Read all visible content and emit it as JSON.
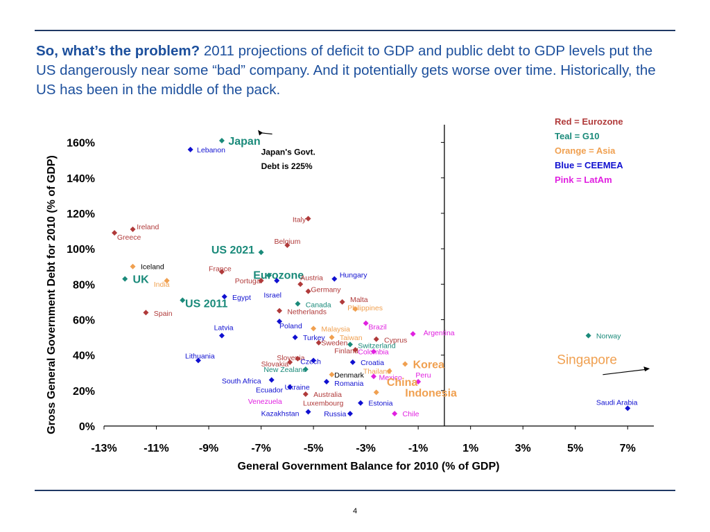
{
  "headline": {
    "lead": "So, what’s the problem?",
    "body": " 2011 projections of deficit to GDP and public debt to GDP levels put the US dangerously near some “bad” company. And it potentially gets worse over time. Historically, the US has been in the middle of the pack."
  },
  "page_number": "4",
  "colors": {
    "eurozone": "#b03a3a",
    "g10": "#1a8a7a",
    "asia": "#f0a050",
    "ceemea": "#1010d0",
    "latam": "#e020e0",
    "navy": "#1f3864",
    "black": "#000000"
  },
  "chart_data": {
    "type": "scatter",
    "xlabel": "General Government Balance for 2010 (% of GDP)",
    "ylabel": "Gross General Government Debt  for 2010 (% of GDP)",
    "xlim": [
      -13,
      8
    ],
    "ylim": [
      0,
      170
    ],
    "xticks": [
      -13,
      -11,
      -9,
      -7,
      -5,
      -3,
      -1,
      1,
      3,
      5,
      7
    ],
    "xtick_labels": [
      "-13%",
      "-11%",
      "-9%",
      "-7%",
      "-5%",
      "-3%",
      "-1%",
      "1%",
      "3%",
      "5%",
      "7%"
    ],
    "yticks": [
      0,
      20,
      40,
      60,
      80,
      100,
      120,
      140,
      160
    ],
    "ytick_labels": [
      "0%",
      "20%",
      "40%",
      "60%",
      "80%",
      "100%",
      "120%",
      "140%",
      "160%"
    ],
    "y_axis_at_x": 0,
    "legend": [
      {
        "text": "Red = Eurozone",
        "group": "eurozone"
      },
      {
        "text": "Teal = G10",
        "group": "g10"
      },
      {
        "text": "Orange = Asia",
        "group": "asia"
      },
      {
        "text": "Blue = CEEMEA",
        "group": "ceemea"
      },
      {
        "text": "Pink = LatAm",
        "group": "latam"
      }
    ],
    "annotations": [
      {
        "text": "Japan's Govt.",
        "x": -7.0,
        "y": 153,
        "arrow_to": [
          -7.2,
          167
        ]
      },
      {
        "text": "Debt is 225%",
        "x": -7.0,
        "y": 145
      },
      {
        "text": "Singapore",
        "x": 4.3,
        "y": 37,
        "arrow_to": [
          7.9,
          32
        ]
      }
    ],
    "points": [
      {
        "label": "Japan",
        "x": -8.5,
        "y": 161,
        "group": "g10",
        "big": true,
        "lx": 0.25,
        "ly": 0
      },
      {
        "label": "Lebanon",
        "x": -9.7,
        "y": 156,
        "group": "ceemea",
        "lx": 0.25,
        "ly": 0
      },
      {
        "label": "Ireland",
        "x": -11.9,
        "y": 111,
        "group": "eurozone",
        "lx": 0.15,
        "ly": 4
      },
      {
        "label": "Greece",
        "x": -12.6,
        "y": 109,
        "group": "eurozone",
        "lx": 0.1,
        "ly": -6
      },
      {
        "label": "Italy",
        "x": -5.2,
        "y": 117,
        "group": "eurozone",
        "lx": -0.6,
        "ly": -1
      },
      {
        "label": "Belgium",
        "x": -6.0,
        "y": 102,
        "group": "eurozone",
        "lx": -0.5,
        "ly": 6
      },
      {
        "label": "US 2021",
        "x": -7.0,
        "y": 98,
        "group": "g10",
        "big": true,
        "lx": -1.9,
        "ly": 4
      },
      {
        "label": "France",
        "x": -8.5,
        "y": 87,
        "group": "eurozone",
        "lx": -0.5,
        "ly": 5
      },
      {
        "label": "Iceland",
        "x": -11.9,
        "y": 90,
        "group": "asia",
        "black": true,
        "lx": 0.3,
        "ly": 0
      },
      {
        "label": "UK",
        "x": -12.2,
        "y": 83,
        "group": "g10",
        "big": true,
        "lx": 0.3,
        "ly": 0
      },
      {
        "label": "India",
        "x": -10.6,
        "y": 82,
        "group": "asia",
        "lx": -0.5,
        "ly": -5
      },
      {
        "label": "Eurozone",
        "x": -6.7,
        "y": 85,
        "group": "g10",
        "big": true,
        "lx": -0.6,
        "ly": 1
      },
      {
        "label": "Portugal",
        "x": -7.0,
        "y": 82,
        "group": "eurozone",
        "lx": -1.0,
        "ly": 0
      },
      {
        "label": "Austria",
        "x": -6.4,
        "y": 82,
        "group": "ceemea",
        "lx": 0.0,
        "ly": 0,
        "hide_label": true
      },
      {
        "label": "Austria",
        "x": -5.5,
        "y": 80,
        "group": "eurozone",
        "lx": 0.0,
        "ly": 10
      },
      {
        "label": "Hungary",
        "x": -4.2,
        "y": 83,
        "group": "ceemea",
        "lx": 0.2,
        "ly": 6
      },
      {
        "label": "Germany",
        "x": -5.2,
        "y": 76,
        "group": "eurozone",
        "lx": 0.1,
        "ly": 3
      },
      {
        "label": "Egypt",
        "x": -8.4,
        "y": 73,
        "group": "ceemea",
        "lx": 0.3,
        "ly": -1
      },
      {
        "label": "Israel",
        "x": -7.0,
        "y": 74,
        "group": "ceemea",
        "lx": 0.1,
        "ly": 0,
        "hide_marker": true
      },
      {
        "label": "US 2011",
        "x": -10.0,
        "y": 71,
        "group": "g10",
        "big": true,
        "lx": 0.1,
        "ly": -4
      },
      {
        "label": "Canada",
        "x": -5.6,
        "y": 69,
        "group": "g10",
        "lx": 0.3,
        "ly": -1
      },
      {
        "label": "Malta",
        "x": -3.9,
        "y": 70,
        "group": "eurozone",
        "lx": 0.3,
        "ly": 4
      },
      {
        "label": "Netherlands",
        "x": -6.3,
        "y": 65,
        "group": "eurozone",
        "lx": 0.3,
        "ly": -1
      },
      {
        "label": "Philippines",
        "x": -3.4,
        "y": 66,
        "group": "asia",
        "lx": -0.3,
        "ly": 2
      },
      {
        "label": "Spain",
        "x": -11.4,
        "y": 64,
        "group": "eurozone",
        "lx": 0.3,
        "ly": -1
      },
      {
        "label": "Latvia",
        "x": -8.5,
        "y": 51,
        "group": "ceemea",
        "lx": -0.3,
        "ly": 12
      },
      {
        "label": "Poland",
        "x": -6.3,
        "y": 59,
        "group": "ceemea",
        "lx": 0.0,
        "ly": -6
      },
      {
        "label": "Malaysia",
        "x": -5.0,
        "y": 55,
        "group": "asia",
        "lx": 0.3,
        "ly": 0
      },
      {
        "label": "Turkey",
        "x": -5.7,
        "y": 50,
        "group": "ceemea",
        "lx": 0.3,
        "ly": 0
      },
      {
        "label": "Taiwan",
        "x": -4.3,
        "y": 50,
        "group": "asia",
        "lx": 0.3,
        "ly": 0
      },
      {
        "label": "Brazil",
        "x": -3.0,
        "y": 58,
        "group": "latam",
        "lx": 0.1,
        "ly": -5
      },
      {
        "label": "Argentina",
        "x": -1.2,
        "y": 52,
        "group": "latam",
        "lx": 0.4,
        "ly": 2
      },
      {
        "label": "Norway",
        "x": 5.5,
        "y": 51,
        "group": "g10",
        "lx": 0.3,
        "ly": 0
      },
      {
        "label": "Sweden",
        "x": -4.8,
        "y": 47,
        "group": "eurozone",
        "lx": 0.1,
        "ly": 0
      },
      {
        "label": "Cyprus",
        "x": -2.6,
        "y": 49,
        "group": "eurozone",
        "lx": 0.3,
        "ly": -1
      },
      {
        "label": "Switzerland",
        "x": -3.6,
        "y": 46,
        "group": "g10",
        "lx": 0.3,
        "ly": -1
      },
      {
        "label": "Lithuania",
        "x": -9.4,
        "y": 37,
        "group": "ceemea",
        "lx": -0.5,
        "ly": 7
      },
      {
        "label": "Slovenia",
        "x": -5.6,
        "y": 38,
        "group": "eurozone",
        "lx": -0.8,
        "ly": 2
      },
      {
        "label": "Finland",
        "x": -3.4,
        "y": 43,
        "group": "eurozone",
        "lx": -0.8,
        "ly": -1
      },
      {
        "label": "Colombia",
        "x": -2.7,
        "y": 42,
        "group": "latam",
        "lx": -0.6,
        "ly": 0
      },
      {
        "label": "Czech",
        "x": -5.0,
        "y": 37,
        "group": "ceemea",
        "lx": -0.5,
        "ly": -1
      },
      {
        "label": "Slovakia",
        "x": -5.9,
        "y": 36,
        "group": "eurozone",
        "lx": -1.1,
        "ly": -2
      },
      {
        "label": "Croatia",
        "x": -3.5,
        "y": 36,
        "group": "ceemea",
        "lx": 0.3,
        "ly": 0
      },
      {
        "label": "Korea",
        "x": -1.5,
        "y": 35,
        "group": "asia",
        "big": true,
        "lx": 0.3,
        "ly": 0
      },
      {
        "label": "New Zealand",
        "x": -5.3,
        "y": 32,
        "group": "g10",
        "lx": -1.6,
        "ly": 0
      },
      {
        "label": "Thailand",
        "x": -2.1,
        "y": 31,
        "group": "asia",
        "lx": -1.0,
        "ly": 0
      },
      {
        "label": "Denmark",
        "x": -4.3,
        "y": 29,
        "group": "asia",
        "black": true,
        "lx": 0.1,
        "ly": 0
      },
      {
        "label": "Peru",
        "x": -1.2,
        "y": 29,
        "group": "latam",
        "lx": 0.1,
        "ly": 0,
        "hide_marker": true
      },
      {
        "label": "Mexico",
        "x": -2.7,
        "y": 28,
        "group": "latam",
        "lx": 0.2,
        "ly": -1
      },
      {
        "label": "China",
        "x": -1.0,
        "y": 25,
        "group": "latam",
        "big_asia": true,
        "lx": -1.2,
        "ly": 0
      },
      {
        "label": "South Africa",
        "x": -6.6,
        "y": 26,
        "group": "ceemea",
        "lx": -1.9,
        "ly": -1
      },
      {
        "label": "Romania",
        "x": -4.5,
        "y": 25,
        "group": "ceemea",
        "lx": 0.3,
        "ly": -2
      },
      {
        "label": "Ukraine",
        "x": -5.9,
        "y": 22,
        "group": "ceemea",
        "lx": -0.2,
        "ly": 0
      },
      {
        "label": "Ecuador",
        "x": -6.6,
        "y": 22,
        "group": "ceemea",
        "lx": -0.6,
        "ly": -4,
        "hide_marker": true
      },
      {
        "label": "Indonesia",
        "x": -2.6,
        "y": 19,
        "group": "asia",
        "big": true,
        "lx": 1.1,
        "ly": 0
      },
      {
        "label": "Australia",
        "x": -5.3,
        "y": 18,
        "group": "eurozone",
        "lx": 0.3,
        "ly": 0
      },
      {
        "label": "Saudi Arabia",
        "x": 7.0,
        "y": 10,
        "group": "ceemea",
        "lx": -1.2,
        "ly": 9,
        "hide_marker": true
      },
      {
        "label": "Saudi Arabia",
        "x": 7.0,
        "y": 10,
        "group": "ceemea",
        "hide_label": true
      },
      {
        "label": "Venezuela",
        "x": -6.1,
        "y": 14,
        "group": "latam",
        "lx": -1.4,
        "ly": 0,
        "hide_marker": true
      },
      {
        "label": "Luxembourg",
        "x": -4.2,
        "y": 13,
        "group": "eurozone",
        "lx": -1.2,
        "ly": 0,
        "hide_marker": true
      },
      {
        "label": "Estonia",
        "x": -3.2,
        "y": 13,
        "group": "ceemea",
        "lx": 0.3,
        "ly": 0
      },
      {
        "label": "Kazakhstan",
        "x": -5.2,
        "y": 8,
        "group": "ceemea",
        "lx": -1.8,
        "ly": -2
      },
      {
        "label": "Russia",
        "x": -3.6,
        "y": 7,
        "group": "ceemea",
        "lx": -1.0,
        "ly": 0
      },
      {
        "label": "Chile",
        "x": -1.9,
        "y": 7,
        "group": "latam",
        "lx": 0.3,
        "ly": 0
      }
    ]
  }
}
